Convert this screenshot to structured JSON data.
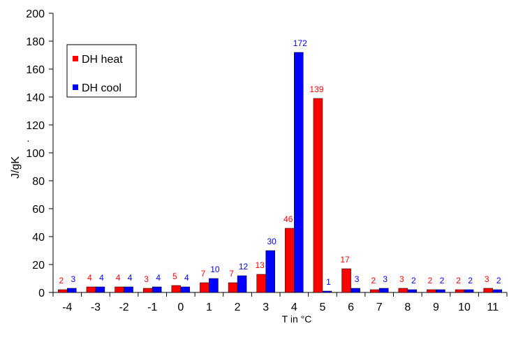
{
  "chart_data": {
    "type": "bar",
    "categories": [
      "-4",
      "-3",
      "-2",
      "-1",
      "0",
      "1",
      "2",
      "3",
      "4",
      "5",
      "6",
      "7",
      "8",
      "9",
      "10",
      "11"
    ],
    "series": [
      {
        "name": "DH heat",
        "color": "#ff0000",
        "values": [
          2,
          4,
          4,
          3,
          5,
          7,
          7,
          13,
          46,
          139,
          17,
          2,
          3,
          2,
          2,
          3
        ]
      },
      {
        "name": "DH cool",
        "color": "#0000ff",
        "values": [
          3,
          4,
          4,
          4,
          4,
          10,
          12,
          30,
          172,
          1,
          3,
          3,
          2,
          2,
          2,
          2
        ]
      }
    ],
    "ylabel": "J/gK",
    "xlabel": "T in °C",
    "ylim": [
      0,
      200
    ],
    "yticks": [
      0,
      20,
      40,
      60,
      80,
      100,
      120,
      140,
      160,
      180,
      200
    ],
    "grid": false,
    "legend": "top-left"
  }
}
